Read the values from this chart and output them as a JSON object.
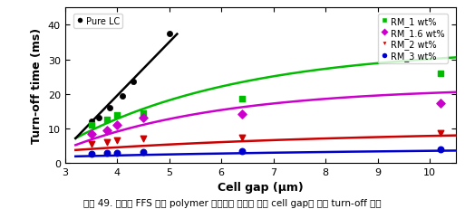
{
  "xlabel": "Cell gap (μm)",
  "ylabel": "Turn-off time (ms)",
  "xlim": [
    3.2,
    10.5
  ],
  "ylim": [
    0,
    45
  ],
  "xticks": [
    3,
    4,
    5,
    6,
    7,
    8,
    9,
    10
  ],
  "yticks": [
    0,
    10,
    20,
    30,
    40
  ],
  "pure_lc_scatter": [
    [
      3.5,
      12.0
    ],
    [
      3.65,
      13.2
    ],
    [
      3.85,
      16.0
    ],
    [
      4.1,
      19.5
    ],
    [
      4.3,
      23.5
    ],
    [
      5.0,
      37.5
    ]
  ],
  "pure_lc_line_x0": 3.2,
  "pure_lc_line_x1": 5.15,
  "pure_lc_line_slope": 15.5,
  "pure_lc_line_intercept": -42.5,
  "rm1_scatter": [
    [
      3.5,
      11.0
    ],
    [
      3.8,
      12.5
    ],
    [
      4.0,
      14.0
    ],
    [
      4.5,
      14.5
    ],
    [
      6.4,
      18.5
    ],
    [
      10.2,
      26.0
    ]
  ],
  "rm1_curve_params": {
    "a": 28.0,
    "b": 0.3,
    "c": 3.0,
    "d": 5.5
  },
  "rm16_scatter": [
    [
      3.5,
      8.5
    ],
    [
      3.8,
      9.5
    ],
    [
      4.0,
      11.0
    ],
    [
      4.5,
      13.0
    ],
    [
      6.4,
      14.2
    ],
    [
      10.2,
      17.2
    ]
  ],
  "rm16_curve_params": {
    "a": 18.0,
    "b": 0.33,
    "c": 3.0,
    "d": 4.0
  },
  "rm2_scatter": [
    [
      3.5,
      5.5
    ],
    [
      3.8,
      6.0
    ],
    [
      4.0,
      6.5
    ],
    [
      4.5,
      7.0
    ],
    [
      6.4,
      7.2
    ],
    [
      10.2,
      8.7
    ]
  ],
  "rm2_curve_params": {
    "a": 6.0,
    "b": 0.18,
    "c": 3.0,
    "d": 3.5
  },
  "rm3_scatter": [
    [
      3.5,
      2.7
    ],
    [
      3.8,
      2.9
    ],
    [
      4.0,
      3.0
    ],
    [
      4.5,
      3.1
    ],
    [
      6.4,
      3.3
    ],
    [
      10.2,
      4.0
    ]
  ],
  "rm3_curve_params": {
    "a": 2.8,
    "b": 0.13,
    "c": 3.0,
    "d": 1.8
  },
  "color_pure_lc": "#000000",
  "color_rm1": "#00bb00",
  "color_rm16": "#cc00cc",
  "color_rm2": "#cc0000",
  "color_rm3": "#0000cc",
  "bg_color": "#ffffff",
  "caption": "그림 49. 기존의 FFS 셀과 polymer 구조물이 형성된 셀의 cell gap에 따른 turn-off 시간"
}
